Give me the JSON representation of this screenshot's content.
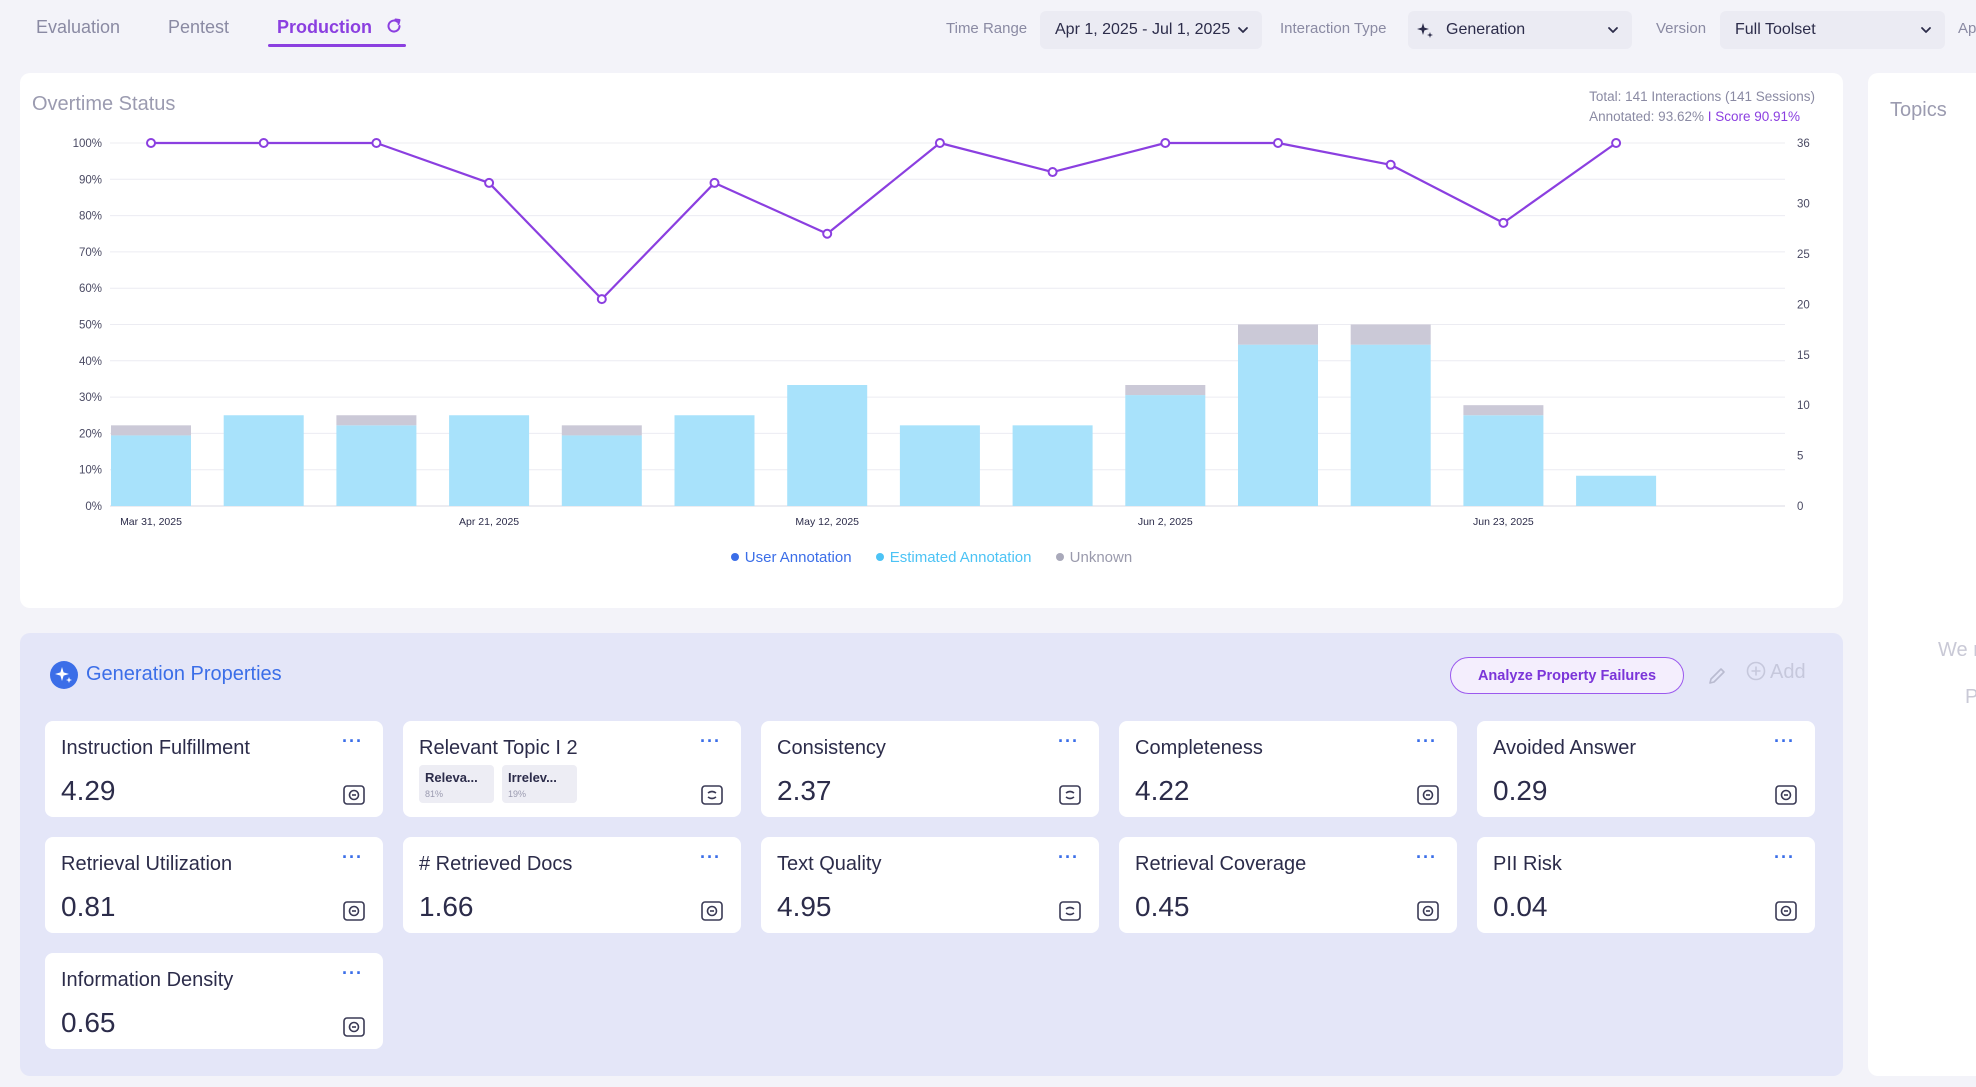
{
  "tabs": [
    {
      "label": "Evaluation",
      "active": false
    },
    {
      "label": "Pentest",
      "active": false
    },
    {
      "label": "Production",
      "active": true
    }
  ],
  "filters": {
    "time_range_label": "Time Range",
    "time_range_value": "Apr 1, 2025 - Jul 1, 2025",
    "interaction_type_label": "Interaction Type",
    "interaction_type_value": "Generation",
    "version_label": "Version",
    "version_value": "Full Toolset",
    "cutoff_label": "Ap"
  },
  "overtime": {
    "title": "Overtime Status",
    "total_line": "Total: 141 Interactions (141 Sessions)",
    "annotated_prefix": "Annotated: 93.62%",
    "score_text": "I Score 90.91%",
    "legend": [
      {
        "label": "User Annotation",
        "color": "#3b6ee8"
      },
      {
        "label": "Estimated Annotation",
        "color": "#4cc3f5"
      },
      {
        "label": "Unknown",
        "color": "#a9a9ba"
      }
    ]
  },
  "chart_data": {
    "type": "bar",
    "x_tick_labels": [
      "Mar 31, 2025",
      "Apr 21, 2025",
      "May 12, 2025",
      "Jun 2, 2025",
      "Jun 23, 2025"
    ],
    "bar_count": 14,
    "left_axis_ticks": [
      "0%",
      "10%",
      "20%",
      "30%",
      "40%",
      "50%",
      "60%",
      "70%",
      "80%",
      "90%",
      "100%"
    ],
    "right_axis_ticks": [
      0,
      5,
      10,
      15,
      20,
      25,
      30,
      36
    ],
    "ylim_left": [
      0,
      100
    ],
    "ylim_right": [
      0,
      36
    ],
    "series": [
      {
        "name": "Estimated Annotation",
        "kind": "bar",
        "axis": "right",
        "color": "#a8e2fb",
        "values": [
          7,
          9,
          8,
          9,
          7,
          9,
          12,
          8,
          8,
          11,
          16,
          16,
          9,
          3
        ]
      },
      {
        "name": "Unknown",
        "kind": "bar",
        "axis": "right",
        "color": "#cbc9d7",
        "values": [
          1,
          0,
          1,
          0,
          1,
          0,
          0,
          0,
          0,
          1,
          2,
          2,
          1,
          0
        ]
      },
      {
        "name": "Score",
        "kind": "line",
        "axis": "left",
        "color": "#8b3fe0",
        "values": [
          100,
          100,
          100,
          89,
          57,
          89,
          75,
          100,
          92,
          100,
          100,
          94,
          78,
          100
        ]
      }
    ],
    "grid": true
  },
  "topics": {
    "title": "Topics",
    "faded_line1": "We r",
    "faded_line2": "P"
  },
  "properties": {
    "title": "Generation Properties",
    "analyze_label": "Analyze Property Failures",
    "add_label": "Add",
    "more_label": "···",
    "cards": [
      {
        "name": "Instruction Fulfillment",
        "value": "4.29"
      },
      {
        "name": "Relevant Topic I 2",
        "chips": [
          {
            "label": "Releva...",
            "pct": "81%"
          },
          {
            "label": "Irrelev...",
            "pct": "19%"
          }
        ]
      },
      {
        "name": "Consistency",
        "value": "2.37"
      },
      {
        "name": "Completeness",
        "value": "4.22"
      },
      {
        "name": "Avoided Answer",
        "value": "0.29"
      },
      {
        "name": "Retrieval Utilization",
        "value": "0.81"
      },
      {
        "name": "# Retrieved Docs",
        "value": "1.66"
      },
      {
        "name": "Text Quality",
        "value": "4.95"
      },
      {
        "name": "Retrieval Coverage",
        "value": "0.45"
      },
      {
        "name": "PII Risk",
        "value": "0.04"
      },
      {
        "name": "Information Density",
        "value": "0.65"
      }
    ]
  }
}
